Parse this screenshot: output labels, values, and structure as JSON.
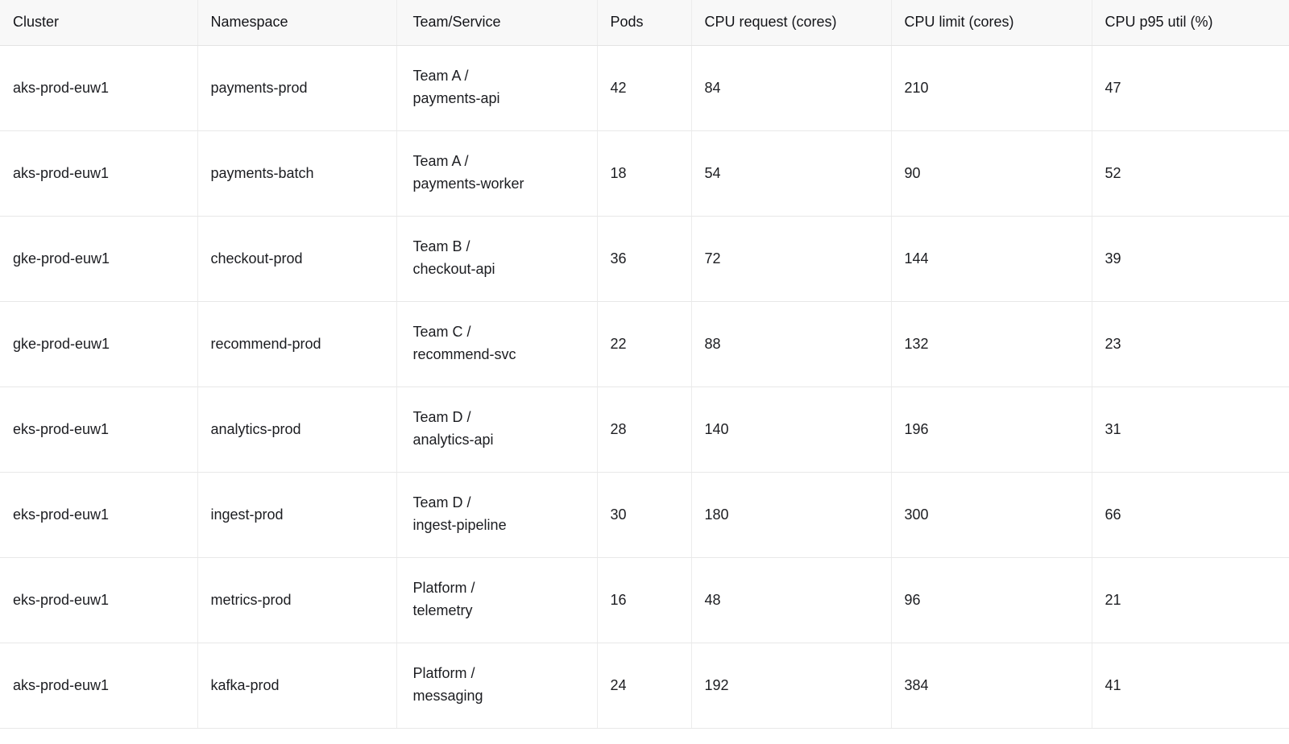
{
  "colors": {
    "header_background": "#f8f8f8",
    "row_background": "#ffffff",
    "grid_line": "#ececec",
    "header_divider": "#e3e3e3",
    "text": "#1c1d21"
  },
  "table": {
    "columns": [
      "Cluster",
      "Namespace",
      "Team/Service",
      "Pods",
      "CPU request (cores)",
      "CPU limit (cores)",
      "CPU p95 util (%)"
    ],
    "rows": [
      {
        "cluster": "aks-prod-euw1",
        "namespace": "payments-prod",
        "team_service": "Team A /\npayments-api",
        "pods": "42",
        "cpu_request": "84",
        "cpu_limit": "210",
        "cpu_p95_util": "47"
      },
      {
        "cluster": "aks-prod-euw1",
        "namespace": "payments-batch",
        "team_service": "Team A /\npayments-worker",
        "pods": "18",
        "cpu_request": "54",
        "cpu_limit": "90",
        "cpu_p95_util": "52"
      },
      {
        "cluster": "gke-prod-euw1",
        "namespace": "checkout-prod",
        "team_service": "Team B /\ncheckout-api",
        "pods": "36",
        "cpu_request": "72",
        "cpu_limit": "144",
        "cpu_p95_util": "39"
      },
      {
        "cluster": "gke-prod-euw1",
        "namespace": "recommend-prod",
        "team_service": "Team C /\nrecommend-svc",
        "pods": "22",
        "cpu_request": "88",
        "cpu_limit": "132",
        "cpu_p95_util": "23"
      },
      {
        "cluster": "eks-prod-euw1",
        "namespace": "analytics-prod",
        "team_service": "Team D /\nanalytics-api",
        "pods": "28",
        "cpu_request": "140",
        "cpu_limit": "196",
        "cpu_p95_util": "31"
      },
      {
        "cluster": "eks-prod-euw1",
        "namespace": "ingest-prod",
        "team_service": "Team D /\ningest-pipeline",
        "pods": "30",
        "cpu_request": "180",
        "cpu_limit": "300",
        "cpu_p95_util": "66"
      },
      {
        "cluster": "eks-prod-euw1",
        "namespace": "metrics-prod",
        "team_service": "Platform /\ntelemetry",
        "pods": "16",
        "cpu_request": "48",
        "cpu_limit": "96",
        "cpu_p95_util": "21"
      },
      {
        "cluster": "aks-prod-euw1",
        "namespace": "kafka-prod",
        "team_service": "Platform /\nmessaging",
        "pods": "24",
        "cpu_request": "192",
        "cpu_limit": "384",
        "cpu_p95_util": "41"
      }
    ]
  },
  "chart_data": {
    "type": "table",
    "title": "",
    "columns": [
      "Cluster",
      "Namespace",
      "Team/Service",
      "Pods",
      "CPU request (cores)",
      "CPU limit (cores)",
      "CPU p95 util (%)"
    ],
    "rows": [
      [
        "aks-prod-euw1",
        "payments-prod",
        "Team A / payments-api",
        42,
        84,
        210,
        47
      ],
      [
        "aks-prod-euw1",
        "payments-batch",
        "Team A / payments-worker",
        18,
        54,
        90,
        52
      ],
      [
        "gke-prod-euw1",
        "checkout-prod",
        "Team B / checkout-api",
        36,
        72,
        144,
        39
      ],
      [
        "gke-prod-euw1",
        "recommend-prod",
        "Team C / recommend-svc",
        22,
        88,
        132,
        23
      ],
      [
        "eks-prod-euw1",
        "analytics-prod",
        "Team D / analytics-api",
        28,
        140,
        196,
        31
      ],
      [
        "eks-prod-euw1",
        "ingest-prod",
        "Team D / ingest-pipeline",
        30,
        180,
        300,
        66
      ],
      [
        "eks-prod-euw1",
        "metrics-prod",
        "Platform / telemetry",
        16,
        48,
        96,
        21
      ],
      [
        "aks-prod-euw1",
        "kafka-prod",
        "Platform / messaging",
        24,
        192,
        384,
        41
      ]
    ]
  }
}
